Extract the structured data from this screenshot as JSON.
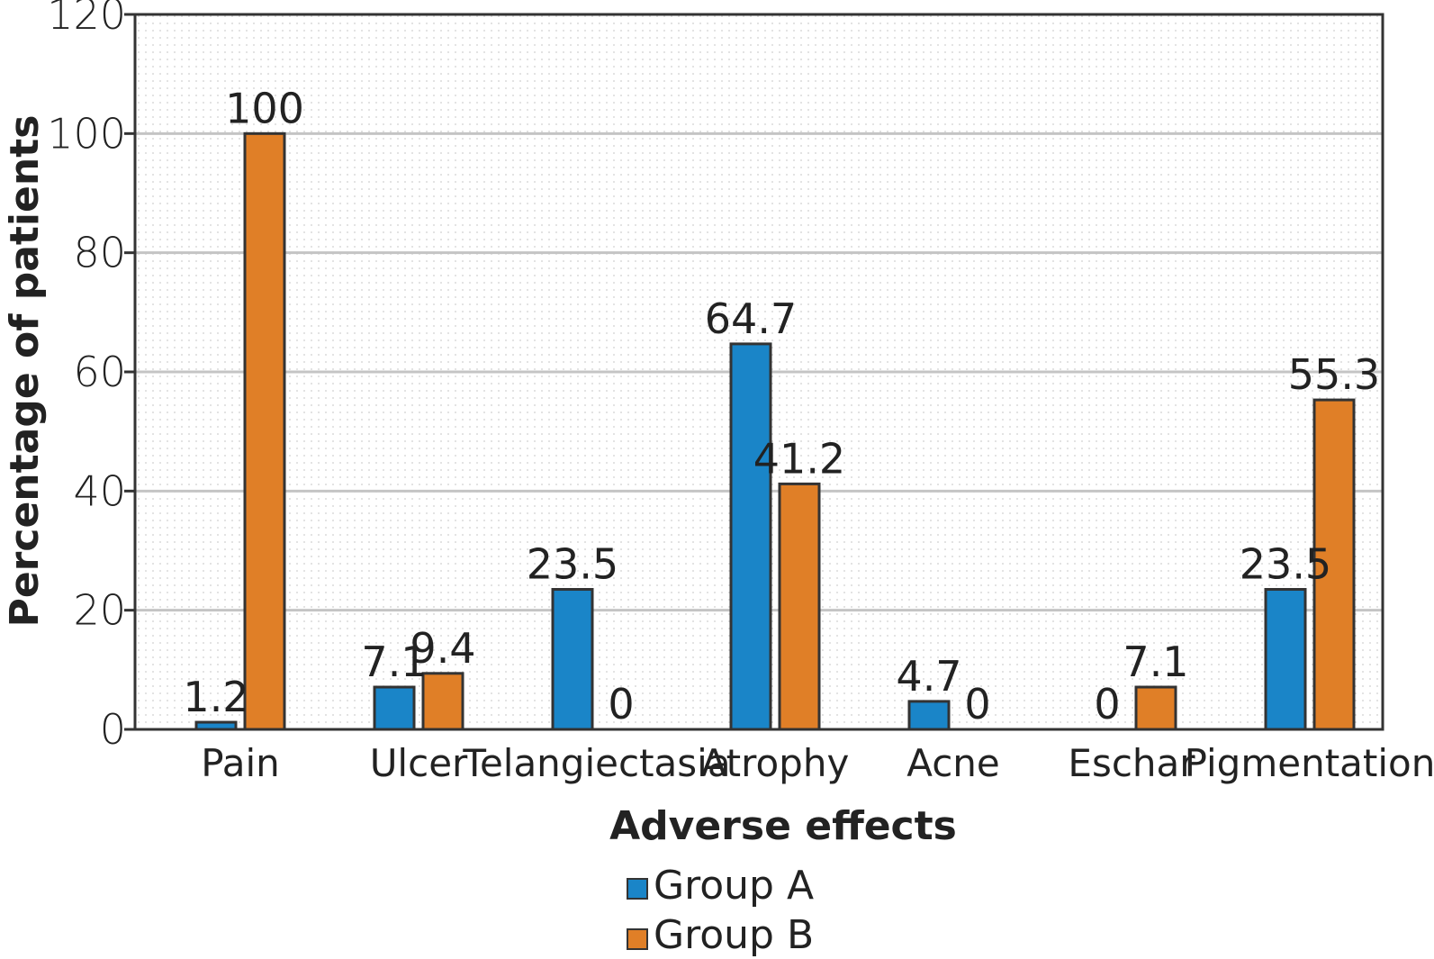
{
  "chart_data": {
    "type": "bar",
    "title": "",
    "xlabel": "Adverse effects",
    "ylabel": "Percentage of patients",
    "ylim": [
      0,
      120
    ],
    "yticks": [
      0,
      20,
      40,
      60,
      80,
      100,
      120
    ],
    "grid": true,
    "legend_position": "bottom-center",
    "categories": [
      "Pain",
      "Ulcer",
      "Telangiectasia",
      "Atrophy",
      "Acne",
      "Eschar",
      "Pigmentation"
    ],
    "series": [
      {
        "name": "Group A",
        "color": "#1a85c8",
        "values": [
          1.2,
          7.1,
          23.5,
          64.7,
          4.7,
          0,
          23.5
        ],
        "labels": [
          "1.2",
          "7.1",
          "23.5",
          "64.7",
          "4.7",
          "0",
          "23.5"
        ]
      },
      {
        "name": "Group B",
        "color": "#e07f27",
        "values": [
          100,
          9.4,
          0,
          41.2,
          0,
          7.1,
          55.3
        ],
        "labels": [
          "100",
          "9.4",
          "0",
          "41.2",
          "0",
          "7.1",
          "55.3"
        ]
      }
    ]
  }
}
